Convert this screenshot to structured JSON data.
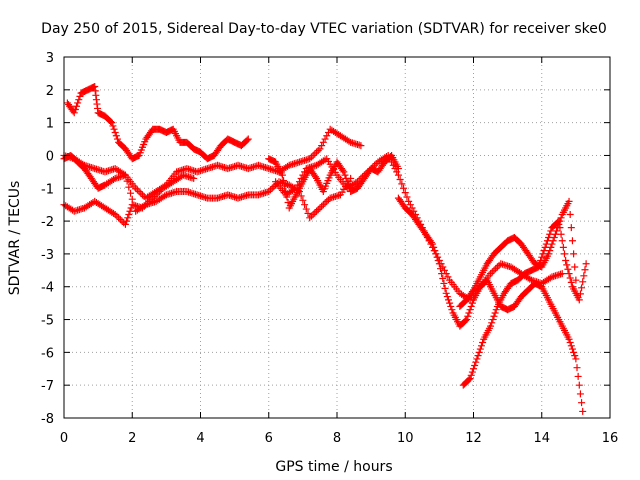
{
  "chart_data": {
    "type": "scatter",
    "title": "Day 250 of 2015, Sidereal Day-to-day VTEC variation (SDTVAR) for receiver ske0",
    "xlabel": "GPS time / hours",
    "ylabel": "SDTVAR / TECUs",
    "xlim": [
      0,
      16
    ],
    "ylim": [
      -8,
      3
    ],
    "xticks": [
      "0",
      "2",
      "4",
      "6",
      "8",
      "10",
      "12",
      "14",
      "16"
    ],
    "yticks": [
      "-8",
      "-7",
      "-6",
      "-5",
      "-4",
      "-3",
      "-2",
      "-1",
      "0",
      "1",
      "2",
      "3"
    ],
    "grid": true,
    "marker": "+",
    "color": "#ff0000",
    "series": [
      {
        "x": [
          0.1,
          0.3,
          0.5,
          0.7,
          0.9,
          1.0,
          1.2,
          1.4,
          1.6,
          1.8,
          2.0,
          2.2,
          2.4,
          2.6,
          2.8,
          3.0,
          3.2,
          3.4,
          3.6,
          3.8,
          4.0,
          4.2,
          4.4,
          4.6,
          4.8,
          5.0,
          5.2,
          5.4
        ],
        "y": [
          1.6,
          1.3,
          1.9,
          2.0,
          2.1,
          1.3,
          1.2,
          1.0,
          0.4,
          0.2,
          -0.1,
          0.0,
          0.5,
          0.8,
          0.8,
          0.7,
          0.8,
          0.4,
          0.4,
          0.2,
          0.1,
          -0.1,
          0.0,
          0.3,
          0.5,
          0.4,
          0.3,
          0.5
        ]
      },
      {
        "x": [
          0.0,
          0.3,
          0.6,
          0.9,
          1.2,
          1.5,
          1.8,
          2.1,
          2.4,
          2.7,
          3.0,
          3.3,
          3.6,
          3.9,
          4.2,
          4.5,
          4.8,
          5.1,
          5.4,
          5.7,
          6.0,
          6.3,
          6.6,
          6.9,
          7.2,
          7.5,
          7.8,
          8.1,
          8.4,
          8.7
        ],
        "y": [
          0.0,
          -0.1,
          -0.3,
          -0.4,
          -0.5,
          -0.4,
          -0.6,
          -1.0,
          -1.3,
          -1.1,
          -0.9,
          -0.5,
          -0.4,
          -0.5,
          -0.4,
          -0.3,
          -0.4,
          -0.3,
          -0.4,
          -0.3,
          -0.4,
          -0.5,
          -0.3,
          -0.2,
          -0.1,
          0.2,
          0.8,
          0.6,
          0.4,
          0.3
        ]
      },
      {
        "x": [
          0.0,
          0.2,
          0.4,
          0.6,
          0.8,
          1.0,
          1.2,
          1.5,
          1.8,
          2.1,
          2.4,
          2.7,
          3.0,
          3.3,
          3.6,
          3.9,
          4.2,
          4.5,
          4.8,
          5.1,
          5.4,
          5.7,
          6.0,
          6.3,
          6.6,
          6.9,
          7.2,
          7.5,
          7.8,
          8.1,
          8.4
        ],
        "y": [
          -0.1,
          0.0,
          -0.2,
          -0.4,
          -0.7,
          -1.0,
          -0.9,
          -0.7,
          -0.6,
          -1.7,
          -1.5,
          -1.4,
          -1.2,
          -1.1,
          -1.1,
          -1.2,
          -1.3,
          -1.3,
          -1.2,
          -1.3,
          -1.2,
          -1.2,
          -1.1,
          -0.8,
          -0.9,
          -1.1,
          -1.9,
          -1.6,
          -1.3,
          -1.2,
          -0.7
        ]
      },
      {
        "x": [
          0.0,
          0.3,
          0.6,
          0.9,
          1.2,
          1.5,
          1.8,
          2.0,
          2.3,
          2.6,
          2.9,
          3.2,
          3.5,
          3.8
        ],
        "y": [
          -1.5,
          -1.7,
          -1.6,
          -1.4,
          -1.6,
          -1.8,
          -2.1,
          -1.5,
          -1.6,
          -1.3,
          -1.0,
          -0.8,
          -0.6,
          -0.7
        ]
      },
      {
        "x": [
          6.0,
          6.2,
          6.4,
          6.6,
          6.8,
          7.0,
          7.2,
          7.4,
          7.6,
          7.8,
          8.0,
          8.2,
          8.4,
          8.6,
          8.8,
          9.0,
          9.2,
          9.4,
          9.6,
          9.8
        ],
        "y": [
          -0.1,
          -0.2,
          -0.6,
          -1.6,
          -1.2,
          -0.8,
          -0.4,
          -0.7,
          -1.1,
          -0.6,
          -0.2,
          -0.5,
          -1.1,
          -1.0,
          -0.7,
          -0.4,
          -0.5,
          -0.2,
          0.0,
          -0.4
        ]
      },
      {
        "x": [
          6.2,
          6.5,
          6.8,
          7.1,
          7.4,
          7.7,
          8.0,
          8.3,
          8.6,
          8.9,
          9.2,
          9.5,
          9.8,
          10.1,
          10.4,
          10.7,
          11.0,
          11.3,
          11.6,
          11.9,
          12.2,
          12.5,
          12.8,
          13.1,
          13.4,
          13.7,
          14.0,
          14.3,
          14.6
        ],
        "y": [
          -0.8,
          -1.2,
          -1.0,
          -0.4,
          -0.3,
          -0.1,
          -0.6,
          -1.0,
          -0.8,
          -0.5,
          -0.2,
          0.0,
          -0.6,
          -1.4,
          -2.0,
          -2.6,
          -3.2,
          -3.8,
          -4.2,
          -4.4,
          -4.0,
          -3.6,
          -3.3,
          -3.4,
          -3.6,
          -3.8,
          -3.9,
          -3.7,
          -3.6
        ]
      },
      {
        "x": [
          9.8,
          10.0,
          10.2,
          10.4,
          10.6,
          10.8,
          11.0,
          11.2,
          11.4,
          11.6,
          11.8,
          12.0,
          12.2,
          12.4,
          12.6,
          12.8,
          13.0,
          13.2,
          13.4,
          13.6,
          13.8,
          14.0,
          14.2,
          14.4,
          14.6,
          14.8,
          15.0,
          15.2
        ],
        "y": [
          -1.3,
          -1.6,
          -1.8,
          -2.1,
          -2.4,
          -2.7,
          -3.3,
          -4.2,
          -4.8,
          -5.2,
          -5.0,
          -4.4,
          -4.0,
          -3.8,
          -4.2,
          -4.6,
          -4.7,
          -4.6,
          -4.3,
          -4.1,
          -3.9,
          -4.0,
          -4.4,
          -4.8,
          -5.2,
          -5.6,
          -6.2,
          -7.8
        ]
      },
      {
        "x": [
          11.6,
          11.8,
          12.0,
          12.2,
          12.4,
          12.6,
          12.8,
          13.0,
          13.2,
          13.4,
          13.6,
          13.8,
          14.0,
          14.2,
          14.4,
          14.6,
          14.8,
          15.0
        ],
        "y": [
          -4.6,
          -4.4,
          -4.1,
          -3.7,
          -3.3,
          -3.0,
          -2.8,
          -2.6,
          -2.5,
          -2.7,
          -3.0,
          -3.3,
          -3.4,
          -3.0,
          -2.4,
          -1.8,
          -1.4,
          -3.8
        ]
      },
      {
        "x": [
          11.7,
          11.9,
          12.1,
          12.3,
          12.5,
          12.7,
          12.9,
          13.1,
          13.3,
          13.5,
          13.7,
          13.9,
          14.1,
          14.3,
          14.5,
          14.7,
          14.9,
          15.1,
          15.3
        ],
        "y": [
          -7.0,
          -6.8,
          -6.2,
          -5.6,
          -5.2,
          -4.6,
          -4.2,
          -3.9,
          -3.8,
          -3.6,
          -3.5,
          -3.4,
          -2.8,
          -2.2,
          -2.0,
          -3.2,
          -4.0,
          -4.4,
          -3.3
        ]
      }
    ]
  }
}
